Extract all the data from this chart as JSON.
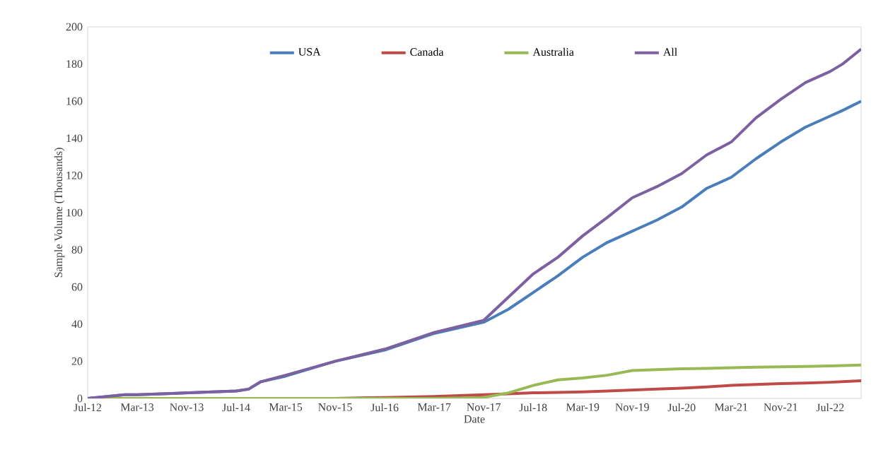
{
  "chart_data": {
    "type": "line",
    "xlabel": "Date",
    "ylabel": "Sample Volume (Thousands)",
    "x": [
      "2012-07",
      "2013-01",
      "2013-03",
      "2013-11",
      "2014-07",
      "2014-09",
      "2014-11",
      "2015-03",
      "2015-11",
      "2016-07",
      "2017-03",
      "2017-11",
      "2018-03",
      "2018-07",
      "2018-11",
      "2019-03",
      "2019-07",
      "2019-11",
      "2020-03",
      "2020-07",
      "2020-11",
      "2021-03",
      "2021-07",
      "2021-11",
      "2022-03",
      "2022-07",
      "2022-09",
      "2022-12"
    ],
    "series": [
      {
        "name": "USA",
        "color": "#4a7ebb",
        "values": [
          0,
          2,
          2,
          3,
          4,
          5,
          9,
          12,
          20,
          26,
          35,
          41,
          48,
          57,
          66,
          76,
          84,
          90,
          96,
          103,
          113,
          119,
          129,
          138,
          146,
          152,
          155,
          160
        ]
      },
      {
        "name": "Canada",
        "color": "#be4b48",
        "values": [
          null,
          null,
          null,
          null,
          null,
          null,
          null,
          0,
          0,
          0.5,
          1,
          2,
          2.5,
          3,
          3.2,
          3.5,
          4,
          4.5,
          5,
          5.5,
          6.2,
          7,
          7.5,
          8,
          8.3,
          8.7,
          9,
          9.5
        ]
      },
      {
        "name": "Australia",
        "color": "#98b954",
        "values": [
          0,
          0,
          0,
          0,
          0,
          0,
          0,
          0,
          0,
          0,
          0,
          0.5,
          3,
          7,
          10,
          11,
          12.5,
          15,
          15.5,
          16,
          16.2,
          16.5,
          16.8,
          17,
          17.2,
          17.5,
          17.7,
          18
        ]
      },
      {
        "name": "All",
        "color": "#7d60a0",
        "values": [
          0,
          2,
          2,
          3,
          4,
          5,
          9,
          12.5,
          20,
          26.5,
          35.5,
          42,
          54.5,
          67,
          76,
          87.5,
          97.5,
          108,
          114,
          121,
          131,
          138,
          151,
          161,
          170,
          176,
          180,
          188
        ]
      }
    ],
    "xlim": [
      "2012-07",
      "2022-12"
    ],
    "xticks": [
      {
        "value": "2012-07",
        "label": "Jul-12"
      },
      {
        "value": "2013-03",
        "label": "Mar-13"
      },
      {
        "value": "2013-11",
        "label": "Nov-13"
      },
      {
        "value": "2014-07",
        "label": "Jul-14"
      },
      {
        "value": "2015-03",
        "label": "Mar-15"
      },
      {
        "value": "2015-11",
        "label": "Nov-15"
      },
      {
        "value": "2016-07",
        "label": "Jul-16"
      },
      {
        "value": "2017-03",
        "label": "Mar-17"
      },
      {
        "value": "2017-11",
        "label": "Nov-17"
      },
      {
        "value": "2018-07",
        "label": "Jul-18"
      },
      {
        "value": "2019-03",
        "label": "Mar-19"
      },
      {
        "value": "2019-11",
        "label": "Nov-19"
      },
      {
        "value": "2020-07",
        "label": "Jul-20"
      },
      {
        "value": "2021-03",
        "label": "Mar-21"
      },
      {
        "value": "2021-11",
        "label": "Nov-21"
      },
      {
        "value": "2022-07",
        "label": "Jul-22"
      }
    ],
    "ylim": [
      0,
      200
    ],
    "yticks": [
      0,
      20,
      40,
      60,
      80,
      100,
      120,
      140,
      160,
      180,
      200
    ],
    "legend": "top",
    "marker": "none",
    "line_style": "solid"
  }
}
